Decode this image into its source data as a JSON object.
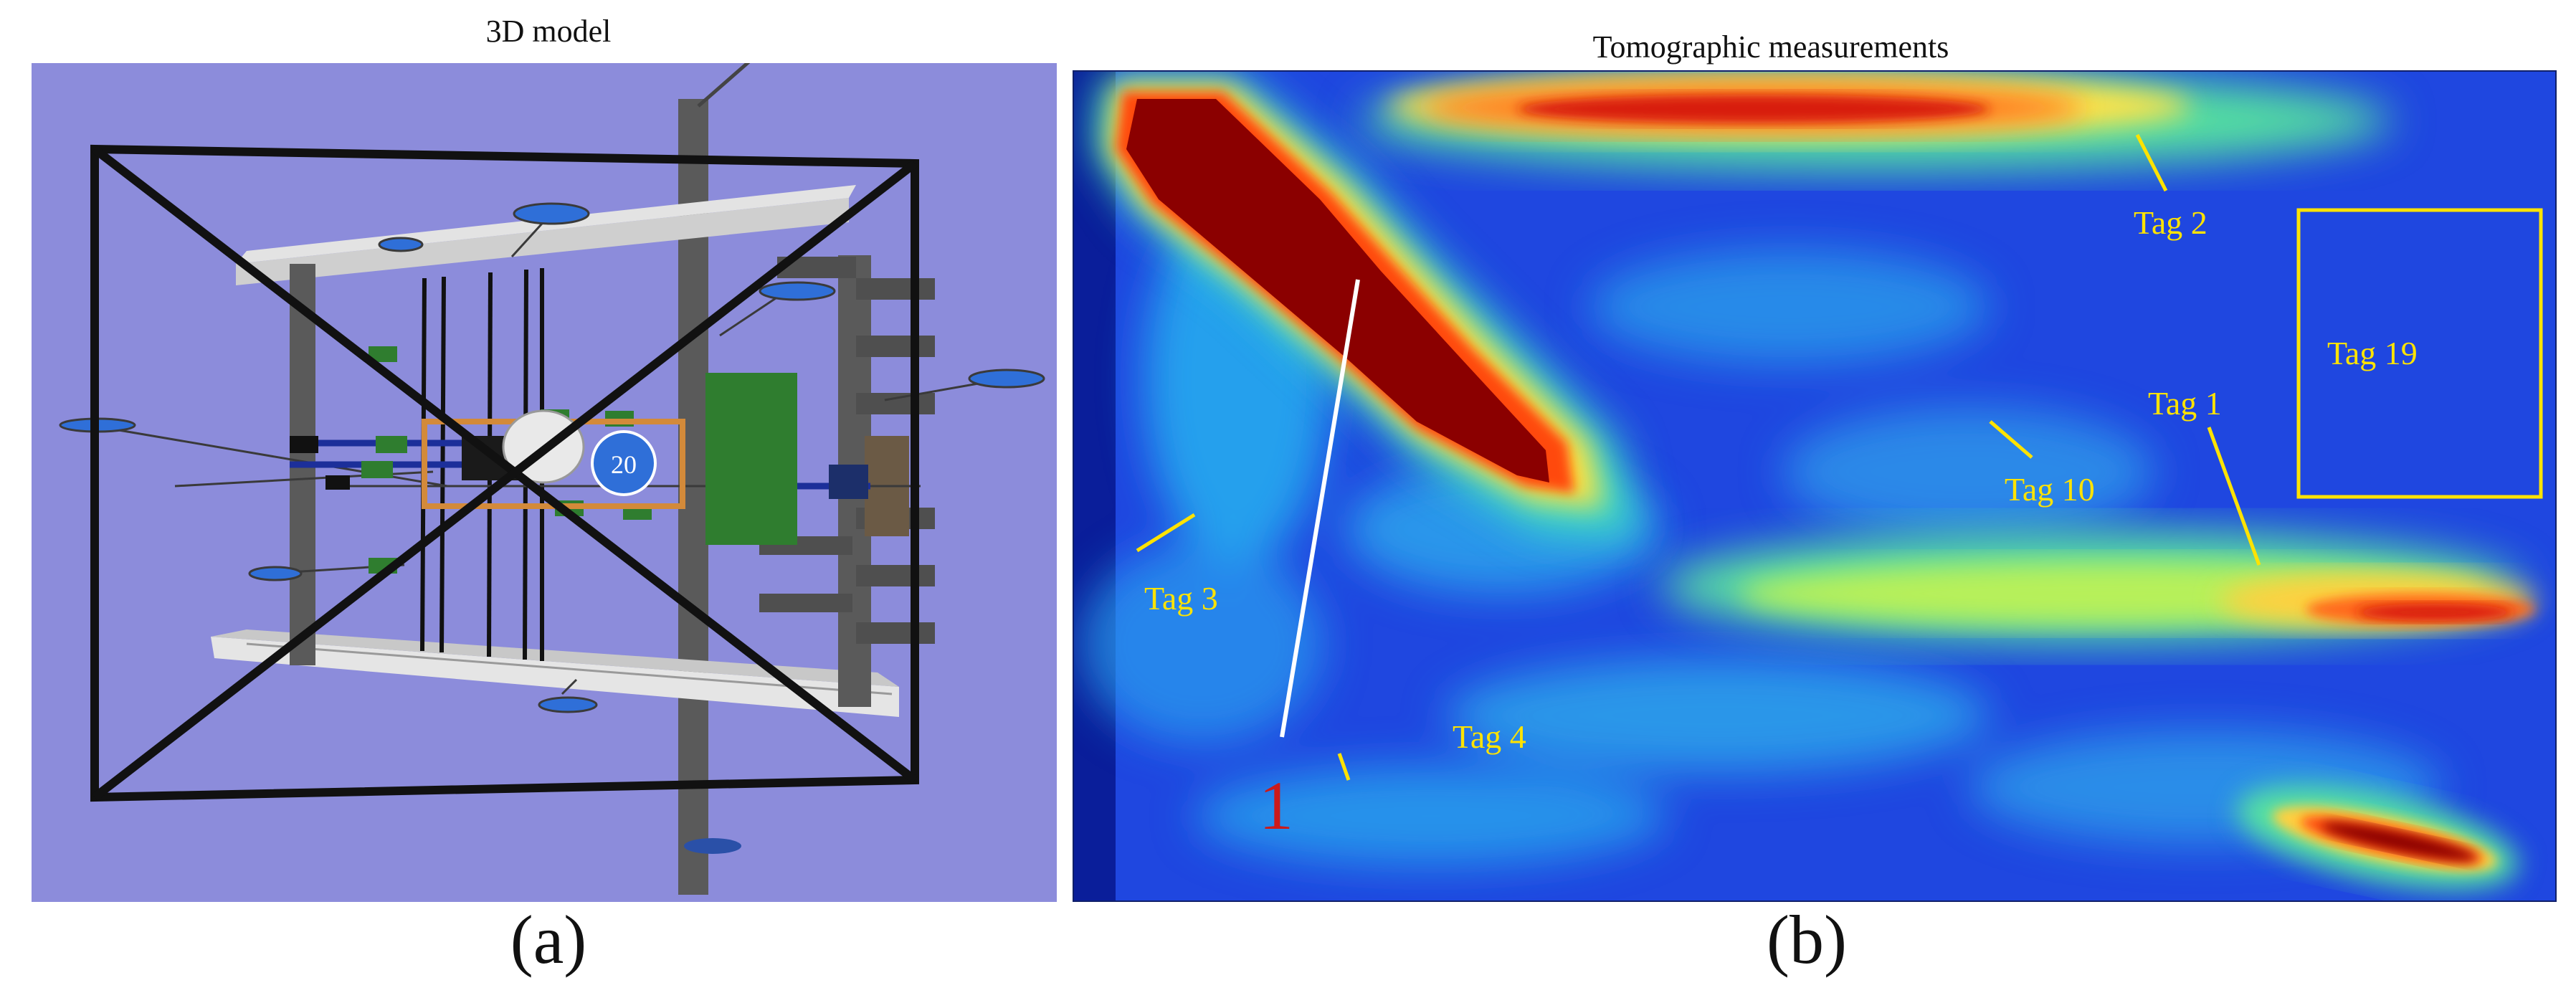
{
  "figure": {
    "panel_a": {
      "title": "3D model",
      "caption": "(a)",
      "model_badge": "20",
      "colors": {
        "background": "#8c8cdb",
        "frame": "#111111",
        "post": "#5a5a5a",
        "board": "#2f7d2f"
      }
    },
    "panel_b": {
      "title": "Tomographic measurements",
      "caption": "(b)",
      "marker_label": "1",
      "tags": [
        {
          "id": "tag-2",
          "text": "Tag 2"
        },
        {
          "id": "tag-19",
          "text": "Tag 19"
        },
        {
          "id": "tag-1",
          "text": "Tag 1"
        },
        {
          "id": "tag-10",
          "text": "Tag 10"
        },
        {
          "id": "tag-3",
          "text": "Tag 3"
        },
        {
          "id": "tag-4",
          "text": "Tag 4"
        }
      ],
      "colors": {
        "background": "#1f47e0",
        "label": "#ffe300",
        "hot": "#8b0000",
        "marker": "#cc1a1a"
      }
    }
  }
}
